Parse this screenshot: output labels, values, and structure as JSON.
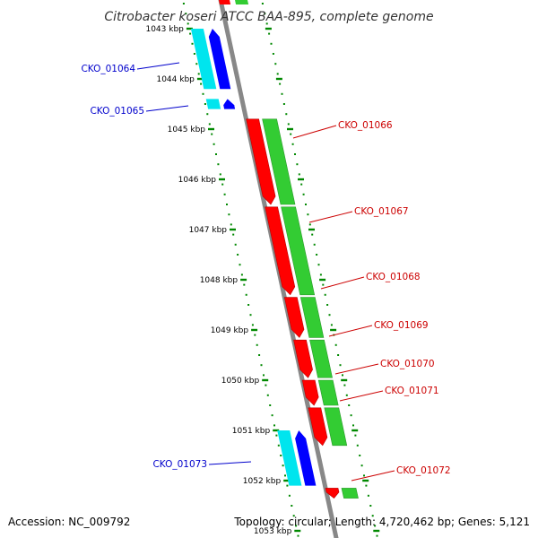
{
  "title": "Citrobacter koseri ATCC BAA-895, complete genome",
  "footer": {
    "accession": "Accession: NC_009792",
    "topology": "Topology: circular; Length: 4,720,462 bp; Genes: 5,121"
  },
  "colors": {
    "forward_cds": "#ff0000",
    "forward_gene": "#33cc33",
    "reverse_cds": "#0000ff",
    "reverse_gene": "#00e5ee",
    "backbone": "#888888",
    "tick": "#008800"
  },
  "scale": {
    "unit": "kbp",
    "ticks": [
      {
        "kbp": 1043,
        "label": "1043 kbp"
      },
      {
        "kbp": 1044,
        "label": "1044 kbp"
      },
      {
        "kbp": 1045,
        "label": "1045 kbp"
      },
      {
        "kbp": 1046,
        "label": "1046 kbp"
      },
      {
        "kbp": 1047,
        "label": "1047 kbp"
      },
      {
        "kbp": 1048,
        "label": "1048 kbp"
      },
      {
        "kbp": 1049,
        "label": "1049 kbp"
      },
      {
        "kbp": 1050,
        "label": "1050 kbp"
      },
      {
        "kbp": 1051,
        "label": "1051 kbp"
      },
      {
        "kbp": 1052,
        "label": "1052 kbp"
      },
      {
        "kbp": 1053,
        "label": "1053 kbp"
      }
    ]
  },
  "genes": [
    {
      "name": "CKO_01064",
      "strand": "reverse",
      "start_kbp": 1043.0,
      "end_kbp": 1044.2
    },
    {
      "name": "CKO_01065",
      "strand": "reverse",
      "start_kbp": 1044.4,
      "end_kbp": 1044.6
    },
    {
      "name": "CKO_01066",
      "strand": "forward",
      "start_kbp": 1044.8,
      "end_kbp": 1046.5
    },
    {
      "name": "CKO_01067",
      "strand": "forward",
      "start_kbp": 1046.55,
      "end_kbp": 1048.3
    },
    {
      "name": "CKO_01068",
      "strand": "forward",
      "start_kbp": 1048.35,
      "end_kbp": 1049.15
    },
    {
      "name": "CKO_01069",
      "strand": "forward",
      "start_kbp": 1049.2,
      "end_kbp": 1049.95
    },
    {
      "name": "CKO_01070",
      "strand": "forward",
      "start_kbp": 1050.0,
      "end_kbp": 1050.5
    },
    {
      "name": "CKO_01071",
      "strand": "forward",
      "start_kbp": 1050.55,
      "end_kbp": 1051.3
    },
    {
      "name": "CKO_01072",
      "strand": "forward",
      "start_kbp": 1052.15,
      "end_kbp": 1052.35
    },
    {
      "name": "CKO_01073",
      "strand": "reverse",
      "start_kbp": 1051.0,
      "end_kbp": 1052.1
    }
  ]
}
